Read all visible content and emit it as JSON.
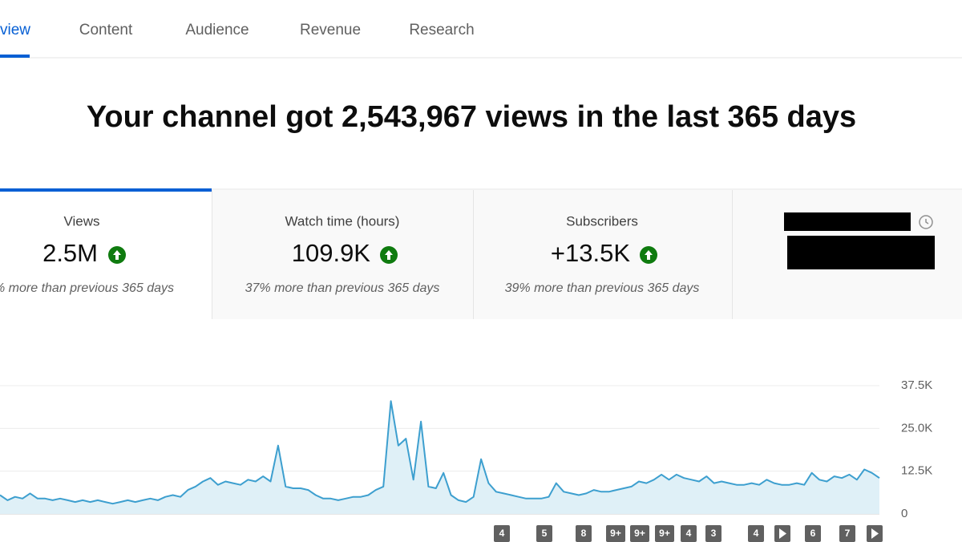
{
  "tabs": [
    "view",
    "Content",
    "Audience",
    "Revenue",
    "Research"
  ],
  "headline": "Your channel got 2,543,967 views in the last 365 days",
  "cards": [
    {
      "label": "Views",
      "value": "2.5M",
      "note": "% more than previous 365 days"
    },
    {
      "label": "Watch time (hours)",
      "value": "109.9K",
      "note": "37% more than previous 365 days"
    },
    {
      "label": "Subscribers",
      "value": "+13.5K",
      "note": "39% more than previous 365 days"
    }
  ],
  "chart_data": {
    "type": "line",
    "color": "#3d9fcf",
    "area_color": "#dff0f7",
    "values": [
      5500,
      4000,
      5000,
      4500,
      6000,
      4500,
      4500,
      4000,
      4500,
      4000,
      3500,
      4000,
      3500,
      4000,
      3500,
      3000,
      3500,
      4000,
      3500,
      4000,
      4500,
      4000,
      5000,
      5500,
      5000,
      7000,
      8000,
      9500,
      10500,
      8500,
      9500,
      9000,
      8500,
      10000,
      9500,
      11000,
      9500,
      20000,
      8000,
      7500,
      7500,
      7000,
      5500,
      4500,
      4500,
      4000,
      4500,
      5000,
      5000,
      5500,
      7000,
      8000,
      33000,
      20000,
      22000,
      10000,
      27000,
      8000,
      7500,
      12000,
      5500,
      4000,
      3500,
      5000,
      16000,
      9000,
      6500,
      6000,
      5500,
      5000,
      4500,
      4500,
      4500,
      5000,
      9000,
      6500,
      6000,
      5500,
      6000,
      7000,
      6500,
      6500,
      7000,
      7500,
      8000,
      9500,
      9000,
      10000,
      11500,
      10000,
      11500,
      10500,
      10000,
      9500,
      11000,
      9000,
      9500,
      9000,
      8500,
      8500,
      9000,
      8500,
      10000,
      9000,
      8500,
      8500,
      9000,
      8500,
      12000,
      10000,
      9500,
      11000,
      10500,
      11500,
      10000,
      13000,
      12000,
      10500
    ],
    "ylim": [
      0,
      37500
    ],
    "yticks": [
      0,
      {
        "value": 12500,
        "label": "12.5K"
      },
      {
        "value": 25000,
        "label": "25.0K"
      },
      {
        "value": 37500,
        "label": "37.5K"
      }
    ],
    "grid": true
  },
  "markers": [
    "4",
    "5",
    "8",
    "9+",
    "9+",
    "9+",
    "4",
    "3",
    "4",
    "6",
    "7"
  ]
}
